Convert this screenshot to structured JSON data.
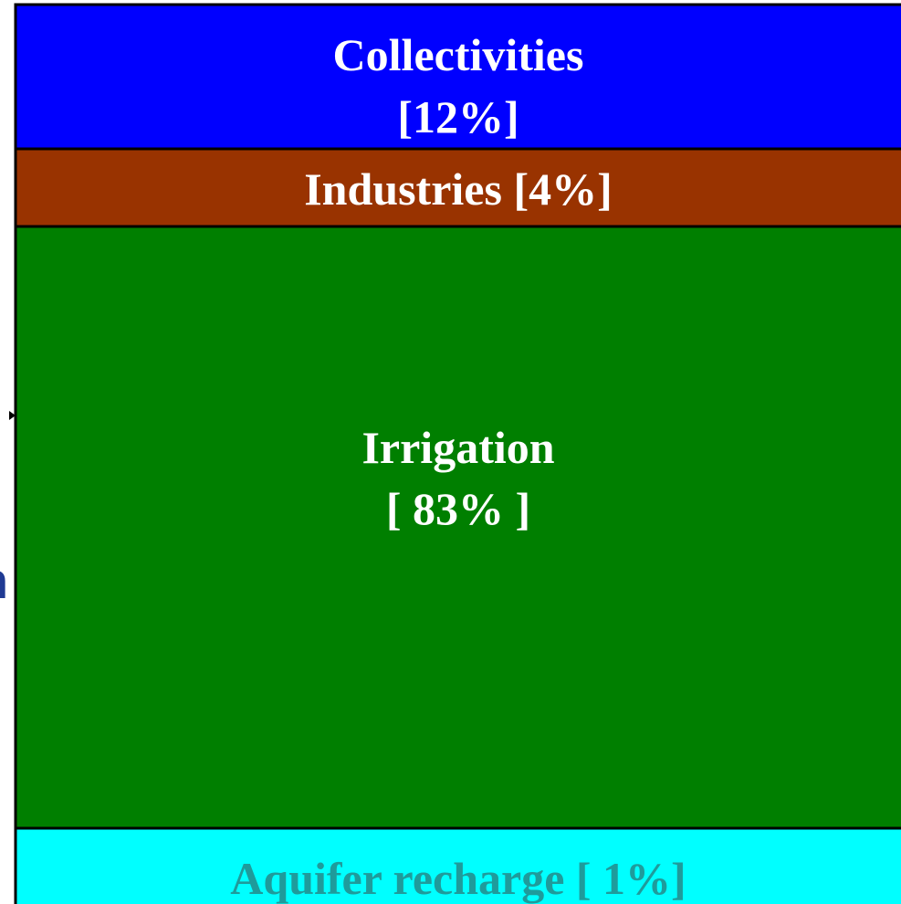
{
  "blocks": [
    {
      "name": "Collectivities",
      "share": "[12%]",
      "color": "#0000ff",
      "text_color": "#ffffff"
    },
    {
      "name": "Industries",
      "share": "[4%]",
      "color": "#993300",
      "text_color": "#ffffff"
    },
    {
      "name": "Irrigation",
      "share": "[ 83% ]",
      "color": "#007f00",
      "text_color": "#ffffff"
    },
    {
      "name": "Aquifer recharge",
      "share": "[ 1%]",
      "color": "#00ffff",
      "text_color": "#1f9b9b"
    }
  ],
  "edge_text": "n"
}
